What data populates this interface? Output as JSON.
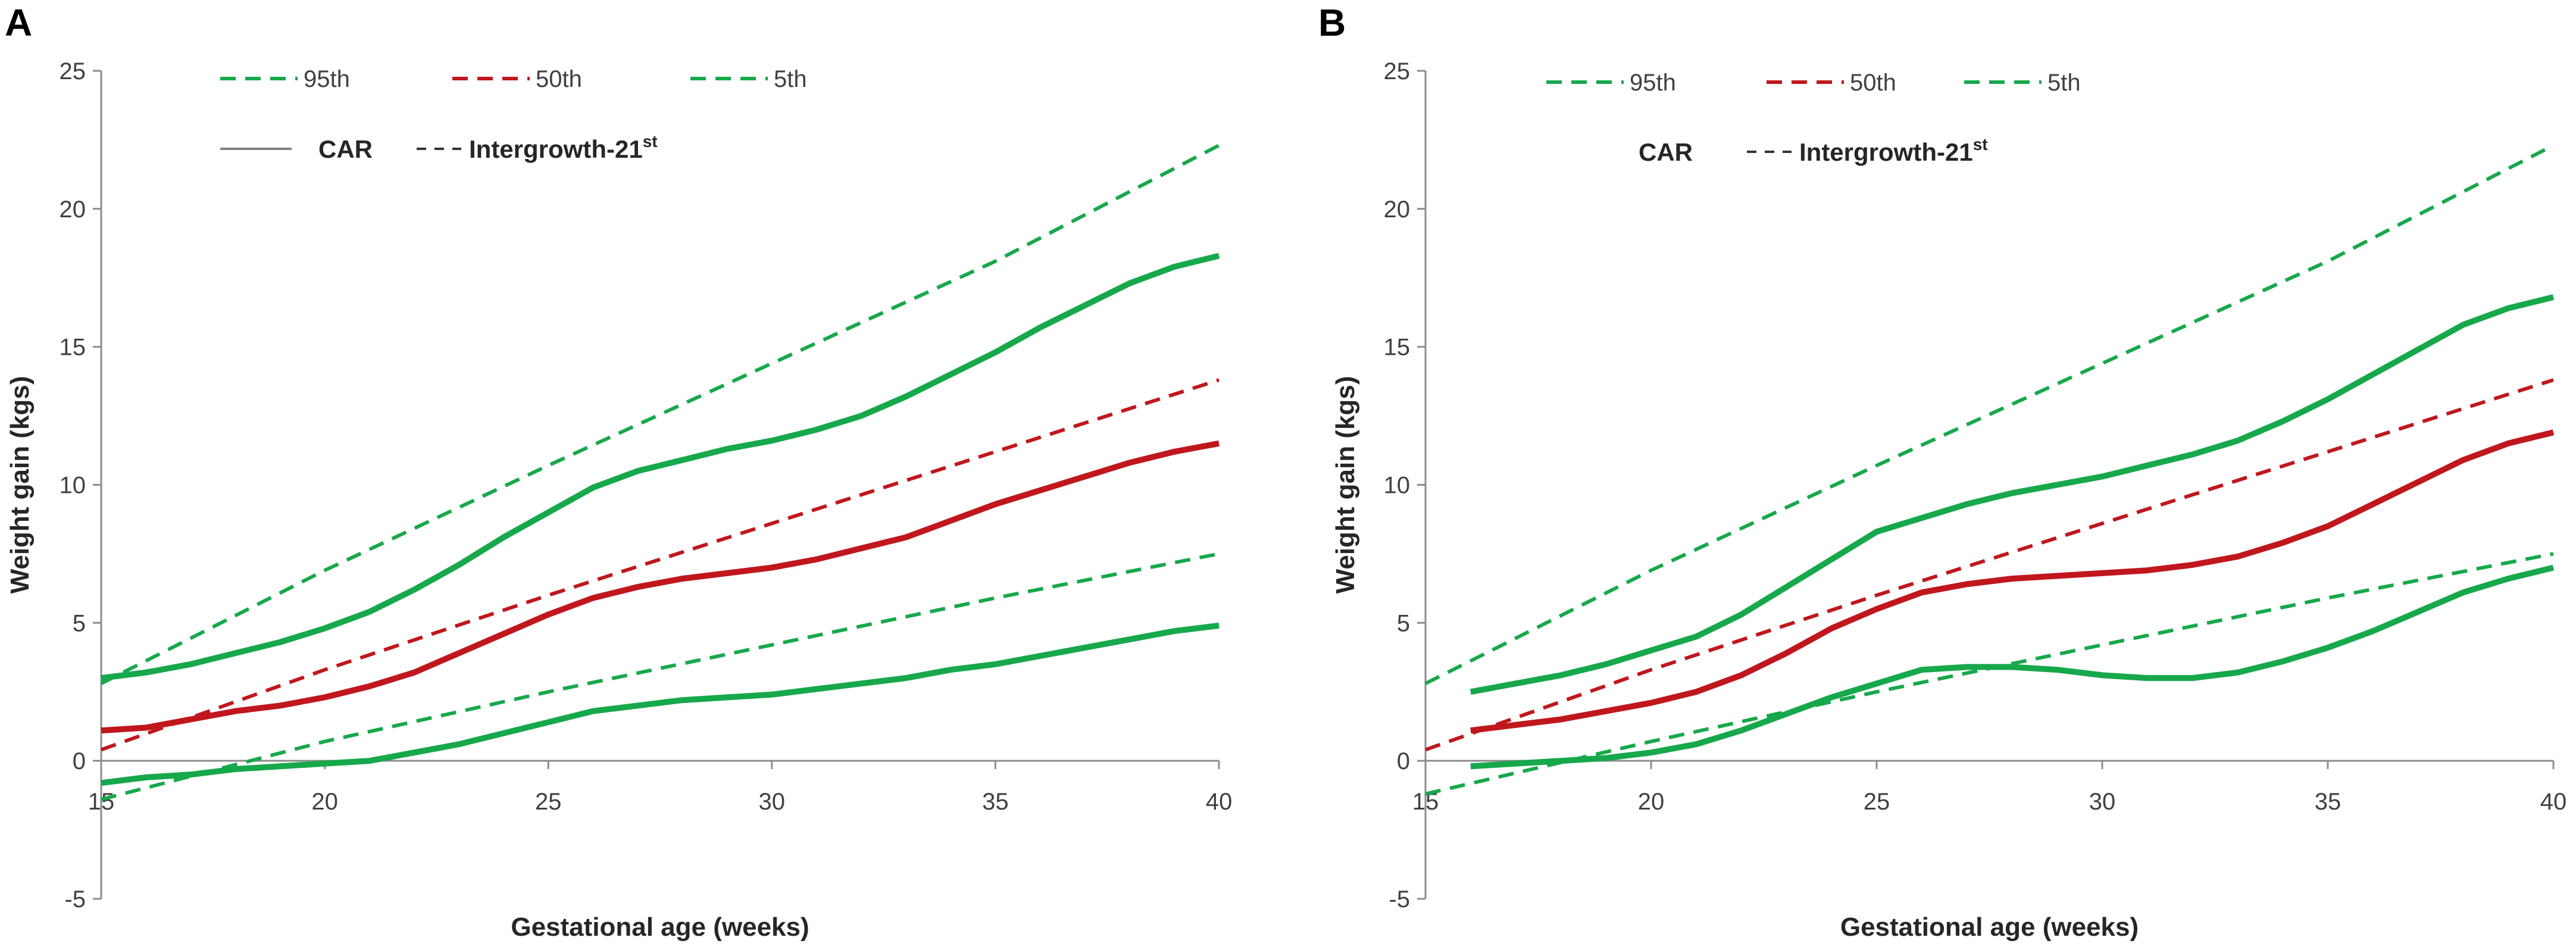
{
  "colors": {
    "green": "#17a84b",
    "red": "#c0171d",
    "gray": "#808080",
    "text": "#262626"
  },
  "legend": {
    "p95": "95th",
    "p50": "50th",
    "p5": "5th",
    "car": "CAR",
    "intergrowth_prefix": "Intergrowth-21",
    "intergrowth_sup": "st"
  },
  "chart_data": [
    {
      "type": "line",
      "panel_label": "A",
      "xlabel": "Gestational age (weeks)",
      "ylabel": "Weight gain (kgs)",
      "xlim": [
        15,
        40
      ],
      "ylim": [
        -5,
        25
      ],
      "xticks": [
        "15",
        "20",
        "25",
        "30",
        "35",
        "40"
      ],
      "yticks": [
        "-5",
        "0",
        "5",
        "10",
        "15",
        "20",
        "25"
      ],
      "show_car_line_sample": true,
      "series": [
        {
          "name": "Intergrowth-21st 95th",
          "color": "green",
          "dash": true,
          "x": [
            15,
            20,
            25,
            30,
            35,
            40
          ],
          "y": [
            2.8,
            6.9,
            10.7,
            14.4,
            18.1,
            22.3
          ]
        },
        {
          "name": "Intergrowth-21st 50th",
          "color": "red",
          "dash": true,
          "x": [
            15,
            20,
            25,
            30,
            35,
            40
          ],
          "y": [
            0.4,
            3.3,
            6.0,
            8.6,
            11.2,
            13.8
          ]
        },
        {
          "name": "Intergrowth-21st 5th",
          "color": "green",
          "dash": true,
          "x": [
            15,
            20,
            25,
            30,
            35,
            40
          ],
          "y": [
            -1.4,
            0.7,
            2.5,
            4.2,
            5.9,
            7.5
          ]
        },
        {
          "name": "CAR 95th",
          "color": "green",
          "dash": false,
          "x": [
            15,
            16,
            17,
            18,
            19,
            20,
            21,
            22,
            23,
            24,
            25,
            26,
            27,
            28,
            29,
            30,
            31,
            32,
            33,
            34,
            35,
            36,
            37,
            38,
            39,
            40
          ],
          "y": [
            3.0,
            3.2,
            3.5,
            3.9,
            4.3,
            4.8,
            5.4,
            6.2,
            7.1,
            8.1,
            9.0,
            9.9,
            10.5,
            10.9,
            11.3,
            11.6,
            12.0,
            12.5,
            13.2,
            14.0,
            14.8,
            15.7,
            16.5,
            17.3,
            17.9,
            18.3
          ]
        },
        {
          "name": "CAR 50th",
          "color": "red",
          "dash": false,
          "x": [
            15,
            16,
            17,
            18,
            19,
            20,
            21,
            22,
            23,
            24,
            25,
            26,
            27,
            28,
            29,
            30,
            31,
            32,
            33,
            34,
            35,
            36,
            37,
            38,
            39,
            40
          ],
          "y": [
            1.1,
            1.2,
            1.5,
            1.8,
            2.0,
            2.3,
            2.7,
            3.2,
            3.9,
            4.6,
            5.3,
            5.9,
            6.3,
            6.6,
            6.8,
            7.0,
            7.3,
            7.7,
            8.1,
            8.7,
            9.3,
            9.8,
            10.3,
            10.8,
            11.2,
            11.5
          ]
        },
        {
          "name": "CAR 5th",
          "color": "green",
          "dash": false,
          "x": [
            15,
            16,
            17,
            18,
            19,
            20,
            21,
            22,
            23,
            24,
            25,
            26,
            27,
            28,
            29,
            30,
            31,
            32,
            33,
            34,
            35,
            36,
            37,
            38,
            39,
            40
          ],
          "y": [
            -0.8,
            -0.6,
            -0.5,
            -0.3,
            -0.2,
            -0.1,
            0.0,
            0.3,
            0.6,
            1.0,
            1.4,
            1.8,
            2.0,
            2.2,
            2.3,
            2.4,
            2.6,
            2.8,
            3.0,
            3.3,
            3.5,
            3.8,
            4.1,
            4.4,
            4.7,
            4.9
          ]
        }
      ]
    },
    {
      "type": "line",
      "panel_label": "B",
      "xlabel": "Gestational age (weeks)",
      "ylabel": "Weight gain (kgs)",
      "xlim": [
        15,
        40
      ],
      "ylim": [
        -5,
        25
      ],
      "xticks": [
        "15",
        "20",
        "25",
        "30",
        "35",
        "40"
      ],
      "yticks": [
        "-5",
        "0",
        "5",
        "10",
        "15",
        "20",
        "25"
      ],
      "show_car_line_sample": false,
      "series": [
        {
          "name": "Intergrowth-21st 95th",
          "color": "green",
          "dash": true,
          "x": [
            15,
            20,
            25,
            30,
            35,
            40
          ],
          "y": [
            2.8,
            6.9,
            10.7,
            14.4,
            18.1,
            22.3
          ]
        },
        {
          "name": "Intergrowth-21st 50th",
          "color": "red",
          "dash": true,
          "x": [
            15,
            20,
            25,
            30,
            35,
            40
          ],
          "y": [
            0.4,
            3.3,
            6.0,
            8.6,
            11.2,
            13.8
          ]
        },
        {
          "name": "Intergrowth-21st 5th",
          "color": "green",
          "dash": true,
          "x": [
            15,
            20,
            25,
            30,
            35,
            40
          ],
          "y": [
            -1.2,
            0.7,
            2.5,
            4.2,
            5.9,
            7.5
          ]
        },
        {
          "name": "CAR 95th",
          "color": "green",
          "dash": false,
          "x": [
            16,
            17,
            18,
            19,
            20,
            21,
            22,
            23,
            24,
            25,
            26,
            27,
            28,
            29,
            30,
            31,
            32,
            33,
            34,
            35,
            36,
            37,
            38,
            39,
            40
          ],
          "y": [
            2.5,
            2.8,
            3.1,
            3.5,
            4.0,
            4.5,
            5.3,
            6.3,
            7.3,
            8.3,
            8.8,
            9.3,
            9.7,
            10.0,
            10.3,
            10.7,
            11.1,
            11.6,
            12.3,
            13.1,
            14.0,
            14.9,
            15.8,
            16.4,
            16.8
          ]
        },
        {
          "name": "CAR 50th",
          "color": "red",
          "dash": false,
          "x": [
            16,
            17,
            18,
            19,
            20,
            21,
            22,
            23,
            24,
            25,
            26,
            27,
            28,
            29,
            30,
            31,
            32,
            33,
            34,
            35,
            36,
            37,
            38,
            39,
            40
          ],
          "y": [
            1.1,
            1.3,
            1.5,
            1.8,
            2.1,
            2.5,
            3.1,
            3.9,
            4.8,
            5.5,
            6.1,
            6.4,
            6.6,
            6.7,
            6.8,
            6.9,
            7.1,
            7.4,
            7.9,
            8.5,
            9.3,
            10.1,
            10.9,
            11.5,
            11.9
          ]
        },
        {
          "name": "CAR 5th",
          "color": "green",
          "dash": false,
          "x": [
            16,
            17,
            18,
            19,
            20,
            21,
            22,
            23,
            24,
            25,
            26,
            27,
            28,
            29,
            30,
            31,
            32,
            33,
            34,
            35,
            36,
            37,
            38,
            39,
            40
          ],
          "y": [
            -0.2,
            -0.1,
            0.0,
            0.1,
            0.3,
            0.6,
            1.1,
            1.7,
            2.3,
            2.8,
            3.3,
            3.4,
            3.4,
            3.3,
            3.1,
            3.0,
            3.0,
            3.2,
            3.6,
            4.1,
            4.7,
            5.4,
            6.1,
            6.6,
            7.0
          ]
        }
      ]
    }
  ]
}
